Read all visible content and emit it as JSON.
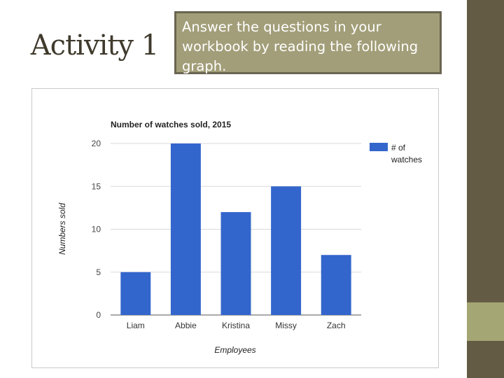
{
  "slide": {
    "title": "Activity 1",
    "instruction": "Answer the questions in your workbook by reading the following graph."
  },
  "colors": {
    "sidebar": "#645b44",
    "sidebar_accent": "#a4a674",
    "instruction_box": "#a29e79",
    "bar": "#3366cc"
  },
  "chart_data": {
    "type": "bar",
    "title": "Number of watches sold, 2015",
    "xlabel": "Employees",
    "ylabel": "Numbers sold",
    "categories": [
      "Liam",
      "Abbie",
      "Kristina",
      "Missy",
      "Zach"
    ],
    "series": [
      {
        "name": "# of watches",
        "values": [
          5,
          20,
          12,
          15,
          7
        ]
      }
    ],
    "ylim": [
      0,
      20
    ],
    "yticks": [
      0,
      5,
      10,
      15,
      20
    ],
    "grid": true,
    "legend": "right"
  }
}
